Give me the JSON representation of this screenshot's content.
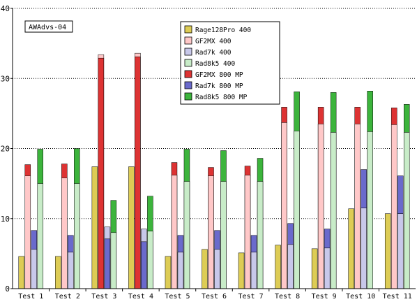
{
  "chart_data": {
    "type": "bar",
    "title": "AWAdvs-04",
    "categories": [
      "Test 1",
      "Test 2",
      "Test 3",
      "Test 4",
      "Test 5",
      "Test 6",
      "Test 7",
      "Test 8",
      "Test 9",
      "Test 10",
      "Test 11"
    ],
    "ylim": [
      0,
      40
    ],
    "yticks": [
      0,
      10,
      20,
      30,
      40
    ],
    "grid": "horizontal dotted",
    "legend_position": "top-center",
    "bar_groups": [
      {
        "base": "Rage128Pro 400",
        "overlay": null
      },
      {
        "base": "GF2MX 400",
        "overlay": "GF2MX 800 MP"
      },
      {
        "base": "Rad7k 400",
        "overlay": "Rad7k 800 MP"
      },
      {
        "base": "Rad8k5 400",
        "overlay": "Rad8k5 800 MP"
      }
    ],
    "series": [
      {
        "name": "Rage128Pro 400",
        "color": "#ddcc55",
        "values": [
          4.6,
          4.6,
          17.4,
          17.4,
          4.6,
          5.6,
          5.1,
          6.2,
          5.7,
          11.4,
          10.7
        ]
      },
      {
        "name": "GF2MX 400",
        "color": "#ffc8c8",
        "values": [
          16.1,
          15.8,
          33.4,
          33.6,
          16.2,
          16.1,
          16.2,
          23.7,
          23.5,
          23.5,
          23.4
        ]
      },
      {
        "name": "Rad7k 400",
        "color": "#c8c8ea",
        "values": [
          5.6,
          5.2,
          8.8,
          8.5,
          5.2,
          5.6,
          5.2,
          6.3,
          5.8,
          11.5,
          10.7
        ]
      },
      {
        "name": "Rad8k5 400",
        "color": "#c8ecc8",
        "values": [
          15.0,
          15.0,
          8.0,
          8.2,
          15.3,
          15.3,
          15.3,
          22.5,
          22.3,
          22.4,
          22.3
        ]
      },
      {
        "name": "GF2MX 800 MP",
        "color": "#dd3333",
        "values": [
          17.7,
          17.8,
          32.9,
          33.1,
          18.0,
          17.3,
          17.5,
          25.9,
          25.9,
          25.9,
          25.8
        ]
      },
      {
        "name": "Rad7k 800 MP",
        "color": "#6a6acc",
        "values": [
          8.3,
          7.6,
          7.1,
          6.7,
          7.6,
          8.3,
          7.6,
          9.3,
          8.5,
          17.0,
          16.1
        ]
      },
      {
        "name": "Rad8k5 800 MP",
        "color": "#3cb43c",
        "values": [
          19.9,
          20.0,
          12.6,
          13.2,
          19.9,
          19.7,
          18.6,
          28.1,
          28.0,
          28.2,
          26.3
        ]
      }
    ]
  }
}
